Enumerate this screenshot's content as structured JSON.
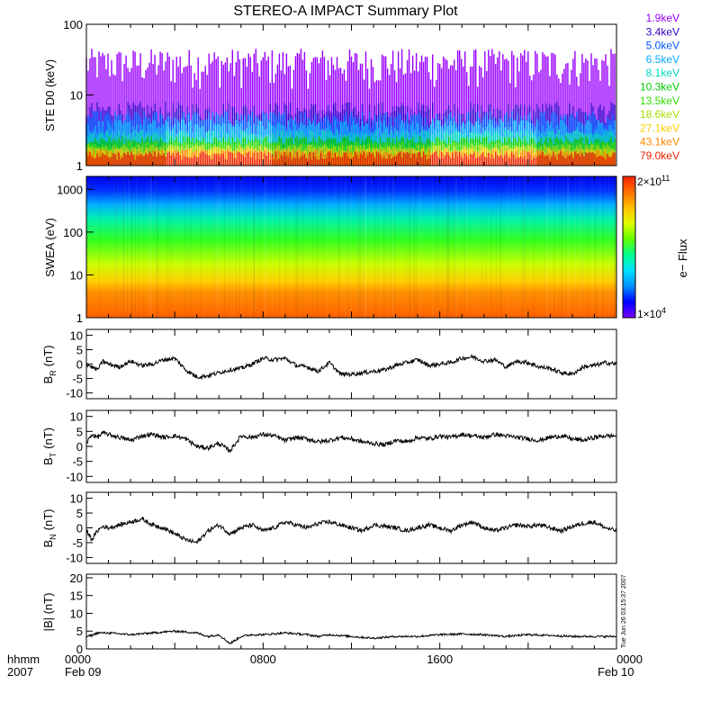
{
  "title": "STEREO-A IMPACT Summary Plot",
  "colors": {
    "frame": "#000000",
    "trace": "#000000",
    "ste_channels": [
      "#9900ff",
      "#3300cc",
      "#0055ff",
      "#00a8ff",
      "#00d8c0",
      "#00cc00",
      "#33dd00",
      "#aadd00",
      "#ffcc00",
      "#ff8800",
      "#ee2200"
    ],
    "spectrogram_scale": [
      "#7a00ff",
      "#0000ff",
      "#0090ff",
      "#00e0ff",
      "#00ff90",
      "#60ff00",
      "#e0ff00",
      "#ffc000",
      "#ff7000",
      "#ff2000"
    ]
  },
  "chart_data": [
    {
      "type": "line",
      "panel": "ste",
      "ylabel": "STE D0 (keV)",
      "yscale": "log",
      "ylim": [
        1,
        100
      ],
      "yticks": [
        "1",
        "10",
        "100"
      ],
      "legend_placement": "right",
      "series": [
        {
          "name": "1.9keV",
          "level": [
            25,
            12,
            45
          ]
        },
        {
          "name": "3.4keV",
          "level": [
            5.5,
            4,
            8
          ]
        },
        {
          "name": "5.0keV",
          "level": [
            4.5,
            3.5,
            6
          ]
        },
        {
          "name": "6.5keV",
          "level": [
            3.5,
            2.8,
            4.5
          ]
        },
        {
          "name": "8.1keV",
          "level": [
            2.8,
            2.4,
            3.2
          ]
        },
        {
          "name": "10.3keV",
          "level": [
            2.3,
            2,
            2.6
          ]
        },
        {
          "name": "13.5keV",
          "level": [
            2,
            1.8,
            2.2
          ]
        },
        {
          "name": "18.6keV",
          "level": [
            1.8,
            1.6,
            2
          ]
        },
        {
          "name": "27.1keV",
          "level": [
            1.6,
            1.4,
            1.8
          ]
        },
        {
          "name": "43.1keV",
          "level": [
            1.5,
            1.3,
            1.7
          ]
        },
        {
          "name": "79.0keV",
          "level": [
            1.4,
            1.2,
            1.6
          ]
        }
      ]
    },
    {
      "type": "heatmap",
      "panel": "swea",
      "ylabel": "SWEA (eV)",
      "yscale": "log",
      "ylim": [
        1,
        2000
      ],
      "yticks": [
        "1",
        "10",
        "100",
        "1000"
      ],
      "colorbar": {
        "label": "e− Flux",
        "min_mantissa": "1×10",
        "min_exp": "4",
        "max_mantissa": "2×10",
        "max_exp": "11"
      }
    },
    {
      "type": "line",
      "panel": "br",
      "ylabel": "B",
      "ylabel_sub": "R",
      "ylabel_unit": "(nT)",
      "ylim": [
        -12,
        12
      ],
      "yticks": [
        "-10",
        "-5",
        "0",
        "5",
        "10"
      ],
      "x": [
        0,
        0.25,
        0.5,
        0.75,
        1,
        1.5,
        2,
        2.5,
        3,
        3.5,
        4,
        4.5,
        5,
        5.5,
        6,
        6.5,
        7,
        7.5,
        8,
        8.5,
        9,
        9.5,
        10,
        10.5,
        11,
        11.5,
        12,
        12.5,
        13,
        13.5,
        14,
        14.5,
        15,
        15.5,
        16,
        16.5,
        17,
        17.5,
        18,
        18.5,
        19,
        19.5,
        20,
        20.5,
        21,
        21.5,
        22,
        22.5,
        23,
        23.5,
        24
      ],
      "y": [
        0,
        -1,
        -2,
        1,
        0,
        -1,
        1,
        -0.5,
        0,
        1.5,
        2,
        -2,
        -4.5,
        -4,
        -3,
        -2,
        -1.5,
        0,
        2,
        1.5,
        2,
        -0.5,
        -1,
        -2.5,
        0.5,
        -3.5,
        -3.5,
        -3,
        -2.5,
        -2,
        -0.5,
        0.5,
        1.5,
        -0.5,
        0,
        0.5,
        2,
        2.5,
        1,
        1.5,
        -1,
        1,
        0.5,
        -1,
        -1.5,
        -3,
        -3.5,
        -1,
        -0.5,
        0.5,
        0
      ]
    },
    {
      "type": "line",
      "panel": "bt",
      "ylabel": "B",
      "ylabel_sub": "T",
      "ylabel_unit": "(nT)",
      "ylim": [
        -12,
        12
      ],
      "yticks": [
        "-10",
        "-5",
        "0",
        "5",
        "10"
      ],
      "x": [
        0,
        0.25,
        0.5,
        0.75,
        1,
        1.5,
        2,
        2.5,
        3,
        3.5,
        4,
        4.5,
        5,
        5.5,
        6,
        6.5,
        7,
        7.5,
        8,
        8.5,
        9,
        9.5,
        10,
        10.5,
        11,
        11.5,
        12,
        12.5,
        13,
        13.5,
        14,
        14.5,
        15,
        15.5,
        16,
        16.5,
        17,
        17.5,
        18,
        18.5,
        19,
        19.5,
        20,
        20.5,
        21,
        21.5,
        22,
        22.5,
        23,
        23.5,
        24
      ],
      "y": [
        1,
        4,
        3,
        4.5,
        4,
        3,
        2,
        3.5,
        4,
        3,
        3.5,
        2.5,
        0,
        -0.5,
        1,
        -1.5,
        3.5,
        3,
        4,
        3.5,
        2,
        3,
        2.5,
        1.5,
        2,
        3,
        2.5,
        1.5,
        1,
        0.5,
        2,
        1.5,
        3,
        2.5,
        3.5,
        3,
        4,
        3.5,
        3,
        4,
        3.5,
        3,
        2.5,
        2,
        3,
        3.5,
        2.5,
        2,
        3,
        3.5,
        3.5
      ]
    },
    {
      "type": "line",
      "panel": "bn",
      "ylabel": "B",
      "ylabel_sub": "N",
      "ylabel_unit": "(nT)",
      "ylim": [
        -12,
        12
      ],
      "yticks": [
        "-10",
        "-5",
        "0",
        "5",
        "10"
      ],
      "x": [
        0,
        0.25,
        0.5,
        0.75,
        1,
        1.5,
        2,
        2.5,
        3,
        3.5,
        4,
        4.5,
        5,
        5.5,
        6,
        6.5,
        7,
        7.5,
        8,
        8.5,
        9,
        9.5,
        10,
        10.5,
        11,
        11.5,
        12,
        12.5,
        13,
        13.5,
        14,
        14.5,
        15,
        15.5,
        16,
        16.5,
        17,
        17.5,
        18,
        18.5,
        19,
        19.5,
        20,
        20.5,
        21,
        21.5,
        22,
        22.5,
        23,
        23.5,
        24
      ],
      "y": [
        -1,
        -4,
        -1,
        0.5,
        0,
        1,
        2,
        3,
        1,
        0,
        -2,
        -4,
        -5,
        -1,
        1,
        -2,
        0,
        1,
        -1,
        0,
        2,
        1,
        0,
        1.5,
        2,
        1,
        0,
        -1,
        1,
        0.5,
        0,
        -1,
        0,
        1,
        0,
        -1,
        1,
        2,
        0,
        -1,
        0,
        1,
        0.5,
        1,
        0,
        -1,
        0.5,
        1.5,
        2,
        0,
        -1
      ]
    },
    {
      "type": "line",
      "panel": "bmag",
      "ylabel": "|B| (nT)",
      "ylim": [
        0,
        21
      ],
      "yticks": [
        "0",
        "5",
        "10",
        "15",
        "20"
      ],
      "x": [
        0,
        0.25,
        0.5,
        1,
        2,
        3,
        4,
        5,
        5.5,
        6,
        6.5,
        7,
        7.5,
        8,
        9,
        10,
        10.5,
        11,
        12,
        13,
        14,
        15,
        16,
        17,
        18,
        19,
        20,
        21,
        22,
        23,
        24
      ],
      "y": [
        3.5,
        3.8,
        4.5,
        4.5,
        4,
        4.5,
        5,
        4.5,
        3.5,
        4,
        1.5,
        3.5,
        4,
        4,
        4.5,
        4,
        3.5,
        4,
        3.5,
        3,
        3.5,
        3.5,
        4,
        4.2,
        4,
        3.5,
        4,
        3.8,
        3.5,
        3.5,
        3.5
      ]
    }
  ],
  "x_axis": {
    "xlim": [
      0,
      24
    ],
    "ticks": [
      {
        "x": 0,
        "label": "0000"
      },
      {
        "x": 8,
        "label": "0800"
      },
      {
        "x": 16,
        "label": "1600"
      },
      {
        "x": 24,
        "label": "0000"
      }
    ],
    "left_label": "hhmm",
    "year": "2007",
    "date_start": "Feb 09",
    "date_end": "Feb 10"
  },
  "timestamp": "Tue Jun 26 03:15:37 2007"
}
